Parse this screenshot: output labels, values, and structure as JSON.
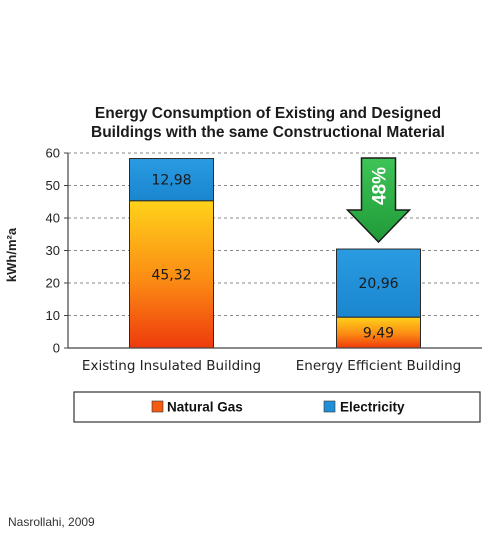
{
  "chart_data": {
    "type": "bar",
    "stacked": true,
    "title_lines": [
      "Energy Consumption of Existing and Designed",
      "Buildings with the same Constructional Material"
    ],
    "ylabel": "kWh/m²a",
    "xlabel": "",
    "ylim": [
      0,
      60
    ],
    "yticks": [
      0,
      10,
      20,
      30,
      40,
      50,
      60
    ],
    "grid": true,
    "legend_position": "bottom",
    "categories": [
      "Existing Insulated Building",
      "Energy Efficient Building"
    ],
    "series": [
      {
        "name": "Natural Gas",
        "values": [
          45.32,
          9.49
        ],
        "labels": [
          "45,32",
          "9,49"
        ],
        "color": "#f45a10"
      },
      {
        "name": "Electricity",
        "values": [
          12.98,
          20.96
        ],
        "labels": [
          "12,98",
          "20,96"
        ],
        "color": "#1f8fd8"
      }
    ],
    "annotation": {
      "text": "48%",
      "type": "down-arrow",
      "color": "#2fb447",
      "category_index": 1
    }
  },
  "source": "Nasrollahi, 2009"
}
